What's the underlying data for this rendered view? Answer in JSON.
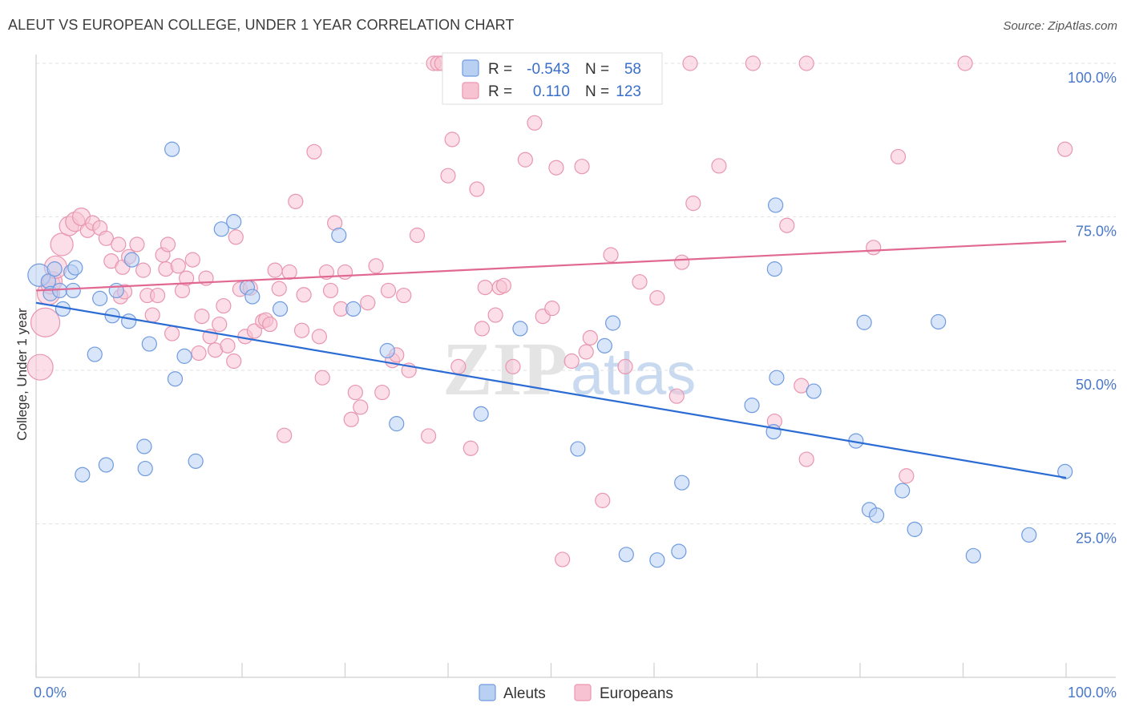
{
  "title": "ALEUT VS EUROPEAN COLLEGE, UNDER 1 YEAR CORRELATION CHART",
  "source": "Source: ZipAtlas.com",
  "colors": {
    "aleut_fill": "#b9d0f2",
    "aleut_stroke": "#6f9be0",
    "aleut_line": "#2b6cd4",
    "euro_fill": "#f7c3d3",
    "euro_stroke": "#e996b0",
    "euro_line": "#e06893",
    "label": "#4a78c9"
  },
  "legend": {
    "rows": [
      {
        "r_label": "R =",
        "r_value": "-0.543",
        "n_label": "N =",
        "n_value": "58"
      },
      {
        "r_label": "R =",
        "r_value": "0.110",
        "n_label": "N =",
        "n_value": "123"
      }
    ]
  },
  "bottom_legend": {
    "aleut": "Aleuts",
    "euro": "Europeans"
  },
  "watermark": {
    "zip": "ZIP",
    "atlas": "atlas"
  },
  "chart_data": {
    "type": "scatter",
    "title": "ALEUT VS EUROPEAN COLLEGE, UNDER 1 YEAR CORRELATION CHART",
    "xlabel": "",
    "ylabel": "College, Under 1 year",
    "xlim": [
      0,
      100
    ],
    "ylim": [
      0,
      100
    ],
    "x_tick_labels": [
      "0.0%",
      "100.0%"
    ],
    "y_tick_labels": [
      "25.0%",
      "50.0%",
      "75.0%",
      "100.0%"
    ],
    "y_ticks": [
      25,
      50,
      75,
      100
    ],
    "grid": "horizontal dashed",
    "legend_position": "top-center",
    "series": [
      {
        "name": "Aleuts",
        "r": -0.543,
        "n": 58,
        "trend": {
          "x": [
            0,
            100
          ],
          "y": [
            61,
            32.5
          ]
        },
        "points": [
          [
            0.3,
            65.5
          ],
          [
            1.2,
            64.5
          ],
          [
            1.4,
            62.5
          ],
          [
            1.8,
            66.5
          ],
          [
            2.3,
            63
          ],
          [
            2.6,
            60
          ],
          [
            3.4,
            66
          ],
          [
            3.6,
            63
          ],
          [
            3.8,
            66.7
          ],
          [
            4.5,
            33
          ],
          [
            5.7,
            52.6
          ],
          [
            6.2,
            61.7
          ],
          [
            6.8,
            34.6
          ],
          [
            7.4,
            58.9
          ],
          [
            7.8,
            63
          ],
          [
            9.0,
            58
          ],
          [
            9.3,
            68
          ],
          [
            10.5,
            37.6
          ],
          [
            10.6,
            34
          ],
          [
            11.0,
            54.3
          ],
          [
            13.2,
            86
          ],
          [
            13.5,
            48.6
          ],
          [
            14.4,
            52.3
          ],
          [
            15.5,
            35.2
          ],
          [
            18.0,
            73
          ],
          [
            19.2,
            74.2
          ],
          [
            20.5,
            63.5
          ],
          [
            21.0,
            62
          ],
          [
            23.7,
            60
          ],
          [
            29.4,
            72
          ],
          [
            30.8,
            60
          ],
          [
            34.1,
            53.2
          ],
          [
            35.0,
            41.3
          ],
          [
            43.2,
            42.9
          ],
          [
            47.0,
            56.8
          ],
          [
            52.6,
            37.2
          ],
          [
            55.2,
            54
          ],
          [
            56.0,
            57.7
          ],
          [
            57.3,
            20
          ],
          [
            60.3,
            19.1
          ],
          [
            62.4,
            20.5
          ],
          [
            62.7,
            31.7
          ],
          [
            69.5,
            44.3
          ],
          [
            71.6,
            40
          ],
          [
            71.7,
            66.5
          ],
          [
            71.8,
            76.9
          ],
          [
            71.9,
            48.8
          ],
          [
            75.5,
            46.6
          ],
          [
            79.6,
            38.5
          ],
          [
            80.4,
            57.8
          ],
          [
            80.9,
            27.3
          ],
          [
            81.6,
            26.4
          ],
          [
            84.1,
            30.4
          ],
          [
            85.3,
            24.1
          ],
          [
            87.6,
            57.9
          ],
          [
            91.0,
            19.8
          ],
          [
            96.4,
            23.2
          ],
          [
            99.9,
            33.5
          ]
        ],
        "point_sizes": [
          14,
          9,
          9,
          9,
          9,
          9,
          9,
          9,
          9,
          9,
          9,
          9,
          9,
          9,
          9,
          9,
          9,
          9,
          9,
          9,
          9,
          9,
          9,
          9,
          9,
          9,
          9,
          9,
          9,
          9,
          9,
          9,
          9,
          9,
          9,
          9,
          9,
          9,
          9,
          9,
          9,
          9,
          9,
          9,
          9,
          9,
          9,
          9,
          9,
          9,
          9,
          9,
          9,
          9,
          9,
          9,
          9,
          9
        ]
      },
      {
        "name": "Europeans",
        "r": 0.11,
        "n": 123,
        "trend": {
          "x": [
            0,
            100
          ],
          "y": [
            63,
            71
          ]
        },
        "points": [
          [
            0.4,
            50.5
          ],
          [
            0.9,
            57.8
          ],
          [
            1.2,
            62.5
          ],
          [
            1.4,
            64
          ],
          [
            1.6,
            64.5
          ],
          [
            1.9,
            66.8
          ],
          [
            2.5,
            70.5
          ],
          [
            3.2,
            73.5
          ],
          [
            3.8,
            74.2
          ],
          [
            4.4,
            75
          ],
          [
            5.0,
            72.8
          ],
          [
            5.5,
            74
          ],
          [
            6.2,
            73.2
          ],
          [
            6.8,
            71.5
          ],
          [
            7.3,
            67.8
          ],
          [
            8.0,
            70.5
          ],
          [
            8.2,
            62
          ],
          [
            8.4,
            66.8
          ],
          [
            8.6,
            62.8
          ],
          [
            9.0,
            68.5
          ],
          [
            9.8,
            70.5
          ],
          [
            10.4,
            66.3
          ],
          [
            10.8,
            62.2
          ],
          [
            11.3,
            59
          ],
          [
            11.8,
            62.2
          ],
          [
            12.3,
            68.8
          ],
          [
            12.6,
            66.5
          ],
          [
            12.8,
            70.5
          ],
          [
            13.2,
            56
          ],
          [
            13.8,
            67
          ],
          [
            14.2,
            63
          ],
          [
            14.6,
            65
          ],
          [
            15.2,
            68
          ],
          [
            15.8,
            52.8
          ],
          [
            16.1,
            58.8
          ],
          [
            16.5,
            65
          ],
          [
            16.9,
            55.5
          ],
          [
            17.4,
            53.3
          ],
          [
            17.8,
            57.5
          ],
          [
            18.2,
            60.5
          ],
          [
            18.6,
            54
          ],
          [
            19.2,
            51.5
          ],
          [
            19.4,
            71.7
          ],
          [
            19.8,
            63.2
          ],
          [
            20.3,
            55.5
          ],
          [
            20.8,
            63.4
          ],
          [
            21.2,
            56.4
          ],
          [
            22.0,
            58
          ],
          [
            22.3,
            58.2
          ],
          [
            22.7,
            57.5
          ],
          [
            23.2,
            66.3
          ],
          [
            23.6,
            63.3
          ],
          [
            24.1,
            39.4
          ],
          [
            24.6,
            66
          ],
          [
            25.2,
            77.5
          ],
          [
            25.8,
            56.5
          ],
          [
            26.0,
            62.3
          ],
          [
            27.0,
            85.6
          ],
          [
            27.5,
            55.5
          ],
          [
            27.8,
            48.8
          ],
          [
            28.2,
            66
          ],
          [
            28.6,
            63
          ],
          [
            29.0,
            74
          ],
          [
            29.6,
            60
          ],
          [
            30.0,
            66
          ],
          [
            30.6,
            42
          ],
          [
            31.0,
            46.4
          ],
          [
            31.5,
            44
          ],
          [
            32.2,
            61
          ],
          [
            33.0,
            67
          ],
          [
            33.6,
            46.4
          ],
          [
            34.2,
            63
          ],
          [
            34.6,
            51.6
          ],
          [
            35.0,
            52.5
          ],
          [
            35.7,
            62.2
          ],
          [
            36.2,
            50
          ],
          [
            37.0,
            72
          ],
          [
            38.1,
            39.3
          ],
          [
            38.6,
            100
          ],
          [
            39.0,
            100
          ],
          [
            39.4,
            100
          ],
          [
            40.0,
            81.7
          ],
          [
            40.4,
            87.6
          ],
          [
            41.0,
            50.6
          ],
          [
            41.6,
            100
          ],
          [
            42.2,
            37.3
          ],
          [
            42.8,
            79.5
          ],
          [
            43.3,
            56.8
          ],
          [
            43.6,
            63.5
          ],
          [
            44.2,
            100
          ],
          [
            44.6,
            59
          ],
          [
            45.0,
            63.5
          ],
          [
            45.4,
            63.8
          ],
          [
            46.3,
            50.6
          ],
          [
            47.5,
            84.3
          ],
          [
            48.4,
            90.3
          ],
          [
            49.2,
            58.8
          ],
          [
            50.1,
            60.1
          ],
          [
            50.5,
            83
          ],
          [
            51.1,
            19.2
          ],
          [
            52.0,
            51.5
          ],
          [
            53.0,
            83.2
          ],
          [
            53.4,
            53
          ],
          [
            53.8,
            55.3
          ],
          [
            55.0,
            28.8
          ],
          [
            55.8,
            68.8
          ],
          [
            57.2,
            50.6
          ],
          [
            58.6,
            64.4
          ],
          [
            60.3,
            61.8
          ],
          [
            62.2,
            45.8
          ],
          [
            62.7,
            67.6
          ],
          [
            63.5,
            100
          ],
          [
            63.8,
            77.2
          ],
          [
            66.3,
            83.3
          ],
          [
            69.6,
            100
          ],
          [
            71.7,
            41.7
          ],
          [
            72.9,
            73.6
          ],
          [
            74.3,
            47.5
          ],
          [
            74.8,
            35.5
          ],
          [
            74.8,
            100
          ],
          [
            81.3,
            70
          ],
          [
            83.7,
            84.8
          ],
          [
            84.5,
            32.8
          ],
          [
            90.2,
            100
          ],
          [
            99.9,
            86
          ]
        ],
        "point_sizes": [
          16,
          18,
          14,
          12,
          12,
          14,
          14,
          12,
          12,
          11,
          9,
          9,
          9,
          9,
          9,
          9,
          9,
          9,
          9,
          9,
          9,
          9,
          9,
          9,
          9,
          9,
          9,
          9,
          9,
          9,
          9,
          9,
          9,
          9,
          9,
          9,
          9,
          9,
          9,
          9,
          9,
          9,
          9,
          9,
          9,
          9,
          9,
          9,
          9,
          9,
          9,
          9,
          9,
          9,
          9,
          9,
          9,
          9,
          9,
          9,
          9,
          9,
          9,
          9,
          9,
          9,
          9,
          9,
          9,
          9,
          9,
          9,
          9,
          9,
          9,
          9,
          9,
          9,
          9,
          9,
          9,
          9,
          9,
          9,
          9,
          9,
          9,
          9,
          9,
          9,
          9,
          9,
          9,
          9,
          9,
          9,
          9,
          9,
          9,
          9,
          9,
          9,
          9,
          9,
          9,
          9,
          9,
          9,
          9,
          9,
          9,
          9,
          9,
          9,
          9,
          9,
          9,
          9,
          9,
          9,
          9,
          9,
          9
        ]
      }
    ]
  }
}
